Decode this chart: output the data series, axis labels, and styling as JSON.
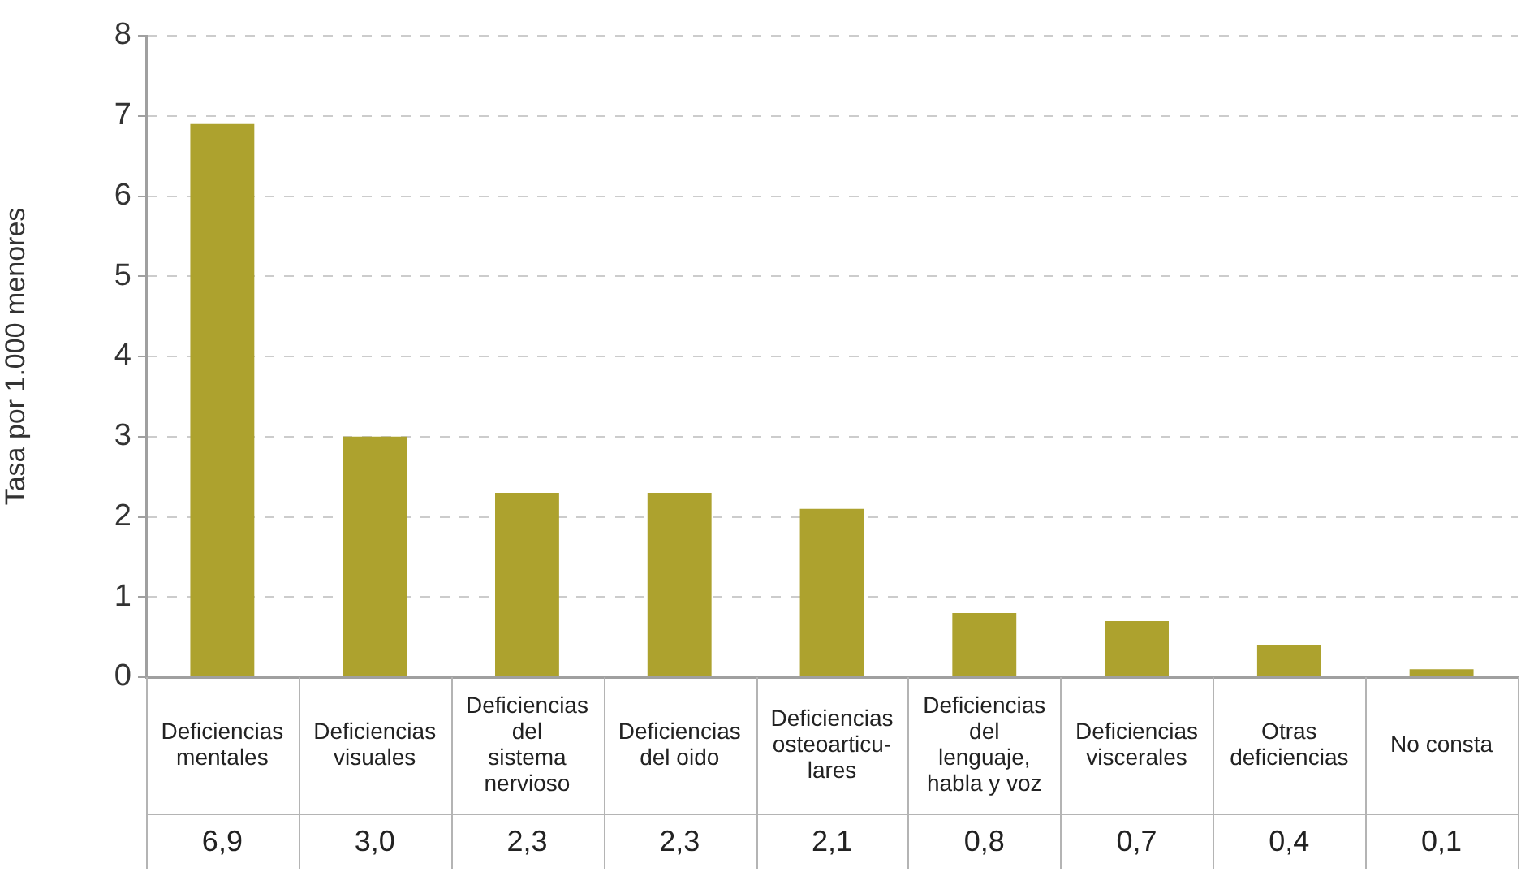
{
  "chart_data": {
    "type": "bar",
    "ylabel": "Tasa por 1.000 menores",
    "categories": [
      "Deficiencias\nmentales",
      "Deficiencias\nvisuales",
      "Deficiencias\ndel\nsistema\nnervioso",
      "Deficiencias\ndel oido",
      "Deficiencias\nosteoarticu-\nlares",
      "Deficiencias\ndel\nlenguaje,\nhabla y voz",
      "Deficiencias\nviscerales",
      "Otras\ndeficiencias",
      "No consta"
    ],
    "values": [
      6.9,
      3.0,
      2.3,
      2.3,
      2.1,
      0.8,
      0.7,
      0.4,
      0.1
    ],
    "value_labels": [
      "6,9",
      "3,0",
      "2,3",
      "2,3",
      "2,1",
      "0,8",
      "0,7",
      "0,4",
      "0,1"
    ],
    "color": "#ada22e",
    "ylim": [
      0,
      8
    ],
    "yticks": [
      0,
      1,
      2,
      3,
      4,
      5,
      6,
      7,
      8
    ],
    "grid": "y"
  }
}
